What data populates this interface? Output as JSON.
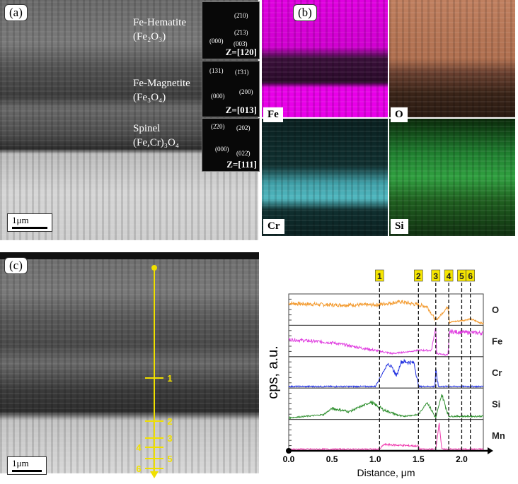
{
  "panel_a": {
    "label": "(a)",
    "scale_bar": "1μm",
    "phases": [
      {
        "name": "Fe-Hematite",
        "formula": "(Fe₂O₃)",
        "zone": "Z=[120]",
        "indices": [
          "(2̄10)",
          "(2̄13)",
          "(000)",
          "(003̄)"
        ]
      },
      {
        "name": "Fe-Magnetite",
        "formula": "(Fe₃O₄)",
        "zone": "Z=[013]",
        "indices": [
          "(131)",
          "(1̄31)",
          "(000)",
          "(200)"
        ]
      },
      {
        "name": "Spinel",
        "formula": "(Fe,Cr)₃O₄",
        "zone": "Z=[111]",
        "indices": [
          "(2̄20)",
          "(202̄)",
          "(000)",
          "(022̄)"
        ]
      }
    ]
  },
  "panel_b": {
    "label": "(b)",
    "maps": [
      {
        "element": "Fe",
        "color": "#ff00ff"
      },
      {
        "element": "O",
        "color": "#e8a070"
      },
      {
        "element": "Cr",
        "color": "#40c8d0"
      },
      {
        "element": "Si",
        "color": "#30c040"
      }
    ]
  },
  "panel_c": {
    "label": "(c)",
    "scale_bar": "1μm",
    "markers": [
      "1",
      "2",
      "3",
      "4",
      "5",
      "6"
    ]
  },
  "chart_data": {
    "type": "line",
    "xlabel": "Distance, μm",
    "ylabel": "cps, a.u.",
    "xlim": [
      0,
      2.25
    ],
    "xticks": [
      "0.0",
      "0.5",
      "1.0",
      "1.5",
      "2.0"
    ],
    "markers": [
      {
        "label": "1",
        "x": 1.05
      },
      {
        "label": "2",
        "x": 1.5
      },
      {
        "label": "3",
        "x": 1.7
      },
      {
        "label": "4",
        "x": 1.85
      },
      {
        "label": "5",
        "x": 2.0
      },
      {
        "label": "6",
        "x": 2.1
      }
    ],
    "series": [
      {
        "name": "O",
        "color": "#f39a2e",
        "points": [
          [
            0,
            0.7
          ],
          [
            0.5,
            0.65
          ],
          [
            1.0,
            0.65
          ],
          [
            1.3,
            0.75
          ],
          [
            1.6,
            0.6
          ],
          [
            1.7,
            0.15
          ],
          [
            1.75,
            0.3
          ],
          [
            1.84,
            0.6
          ],
          [
            1.86,
            0.1
          ],
          [
            2.0,
            0.15
          ],
          [
            2.1,
            0.2
          ],
          [
            2.25,
            0.05
          ]
        ]
      },
      {
        "name": "Fe",
        "color": "#e040e0",
        "points": [
          [
            0,
            0.55
          ],
          [
            0.5,
            0.45
          ],
          [
            1.0,
            0.2
          ],
          [
            1.2,
            0.1
          ],
          [
            1.5,
            0.2
          ],
          [
            1.65,
            0.2
          ],
          [
            1.7,
            0.95
          ],
          [
            1.71,
            0.1
          ],
          [
            1.84,
            0.05
          ],
          [
            1.86,
            0.8
          ],
          [
            2.25,
            0.75
          ]
        ]
      },
      {
        "name": "Cr",
        "color": "#2030e0",
        "points": [
          [
            0,
            0.05
          ],
          [
            1.0,
            0.05
          ],
          [
            1.15,
            0.8
          ],
          [
            1.25,
            0.4
          ],
          [
            1.3,
            0.85
          ],
          [
            1.45,
            0.8
          ],
          [
            1.5,
            0.05
          ],
          [
            1.69,
            0.05
          ],
          [
            1.7,
            0.6
          ],
          [
            1.73,
            0.05
          ],
          [
            2.25,
            0.05
          ]
        ]
      },
      {
        "name": "Si",
        "color": "#309030",
        "points": [
          [
            0,
            0.05
          ],
          [
            0.4,
            0.15
          ],
          [
            0.5,
            0.35
          ],
          [
            0.7,
            0.25
          ],
          [
            0.95,
            0.55
          ],
          [
            1.1,
            0.3
          ],
          [
            1.3,
            0.1
          ],
          [
            1.5,
            0.15
          ],
          [
            1.6,
            0.55
          ],
          [
            1.7,
            0.05
          ],
          [
            1.77,
            0.8
          ],
          [
            1.85,
            0.1
          ],
          [
            2.25,
            0.1
          ]
        ]
      },
      {
        "name": "Mn",
        "color": "#f040b0",
        "points": [
          [
            0,
            0.05
          ],
          [
            1.05,
            0.05
          ],
          [
            1.1,
            0.2
          ],
          [
            1.5,
            0.15
          ],
          [
            1.51,
            0.05
          ],
          [
            1.7,
            0.05
          ],
          [
            1.74,
            0.9
          ],
          [
            1.77,
            0.05
          ],
          [
            2.25,
            0.05
          ]
        ]
      }
    ]
  }
}
